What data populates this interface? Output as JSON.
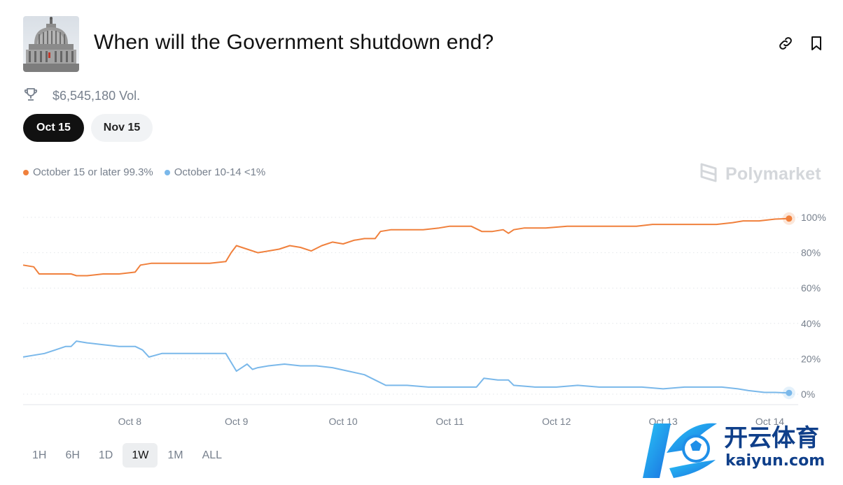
{
  "header": {
    "title": "When will the Government shutdown end?",
    "thumbnail_alt": "US Capitol building",
    "link_icon": "link-icon",
    "bookmark_icon": "bookmark-icon"
  },
  "meta": {
    "volume": "$6,545,180 Vol.",
    "volume_icon": "trophy-icon"
  },
  "date_tabs": [
    {
      "label": "Oct 15",
      "active": true
    },
    {
      "label": "Nov 15",
      "active": false
    }
  ],
  "legend": [
    {
      "label": "October 15 or later 99.3%",
      "color": "#f0803c"
    },
    {
      "label": "October 10-14 <1%",
      "color": "#7ab8ea"
    }
  ],
  "brand": "Polymarket",
  "range_buttons": [
    {
      "label": "1H",
      "active": false
    },
    {
      "label": "6H",
      "active": false
    },
    {
      "label": "1D",
      "active": false
    },
    {
      "label": "1W",
      "active": true
    },
    {
      "label": "1M",
      "active": false
    },
    {
      "label": "ALL",
      "active": false
    }
  ],
  "watermark": {
    "text_cn": "开云体育",
    "text_en": "kaiyun.com"
  },
  "chart_data": {
    "type": "line",
    "ylim": [
      0,
      100
    ],
    "yticks": [
      0,
      20,
      40,
      60,
      80,
      100
    ],
    "ytick_labels": [
      "0%",
      "20%",
      "40%",
      "60%",
      "80%",
      "100%"
    ],
    "xlim": [
      7.0,
      14.22
    ],
    "xticks": [
      8,
      9,
      10,
      11,
      12,
      13,
      14
    ],
    "xtick_labels": [
      "Oct 8",
      "Oct 9",
      "Oct 10",
      "Oct 11",
      "Oct 12",
      "Oct 13",
      "Oct 14"
    ],
    "grid": true,
    "series": [
      {
        "name": "October 15 or later",
        "color": "#f0803c",
        "points": [
          [
            7.0,
            73
          ],
          [
            7.1,
            72
          ],
          [
            7.15,
            68
          ],
          [
            7.3,
            68
          ],
          [
            7.45,
            68
          ],
          [
            7.5,
            67
          ],
          [
            7.6,
            67
          ],
          [
            7.75,
            68
          ],
          [
            7.9,
            68
          ],
          [
            8.05,
            69
          ],
          [
            8.1,
            73
          ],
          [
            8.2,
            74
          ],
          [
            8.35,
            74
          ],
          [
            8.5,
            74
          ],
          [
            8.6,
            74
          ],
          [
            8.75,
            74
          ],
          [
            8.9,
            75
          ],
          [
            8.95,
            80
          ],
          [
            9.0,
            84
          ],
          [
            9.05,
            83
          ],
          [
            9.1,
            82
          ],
          [
            9.2,
            80
          ],
          [
            9.3,
            81
          ],
          [
            9.4,
            82
          ],
          [
            9.5,
            84
          ],
          [
            9.6,
            83
          ],
          [
            9.7,
            81
          ],
          [
            9.8,
            84
          ],
          [
            9.9,
            86
          ],
          [
            10.0,
            85
          ],
          [
            10.1,
            87
          ],
          [
            10.2,
            88
          ],
          [
            10.3,
            88
          ],
          [
            10.35,
            92
          ],
          [
            10.45,
            93
          ],
          [
            10.6,
            93
          ],
          [
            10.75,
            93
          ],
          [
            10.9,
            94
          ],
          [
            11.0,
            95
          ],
          [
            11.2,
            95
          ],
          [
            11.3,
            92
          ],
          [
            11.4,
            92
          ],
          [
            11.5,
            93
          ],
          [
            11.55,
            91
          ],
          [
            11.6,
            93
          ],
          [
            11.7,
            94
          ],
          [
            11.9,
            94
          ],
          [
            12.1,
            95
          ],
          [
            12.3,
            95
          ],
          [
            12.45,
            95
          ],
          [
            12.6,
            95
          ],
          [
            12.75,
            95
          ],
          [
            12.9,
            96
          ],
          [
            13.05,
            96
          ],
          [
            13.2,
            96
          ],
          [
            13.35,
            96
          ],
          [
            13.5,
            96
          ],
          [
            13.65,
            97
          ],
          [
            13.75,
            98
          ],
          [
            13.9,
            98
          ],
          [
            14.05,
            99
          ],
          [
            14.18,
            99.3
          ]
        ]
      },
      {
        "name": "October 10-14",
        "color": "#7ab8ea",
        "points": [
          [
            7.0,
            21
          ],
          [
            7.1,
            22
          ],
          [
            7.2,
            23
          ],
          [
            7.3,
            25
          ],
          [
            7.4,
            27
          ],
          [
            7.45,
            27
          ],
          [
            7.5,
            30
          ],
          [
            7.6,
            29
          ],
          [
            7.75,
            28
          ],
          [
            7.9,
            27
          ],
          [
            8.05,
            27
          ],
          [
            8.12,
            25
          ],
          [
            8.18,
            21
          ],
          [
            8.3,
            23
          ],
          [
            8.45,
            23
          ],
          [
            8.55,
            23
          ],
          [
            8.7,
            23
          ],
          [
            8.9,
            23
          ],
          [
            8.95,
            18
          ],
          [
            9.0,
            13
          ],
          [
            9.05,
            15
          ],
          [
            9.1,
            17
          ],
          [
            9.15,
            14
          ],
          [
            9.2,
            15
          ],
          [
            9.3,
            16
          ],
          [
            9.45,
            17
          ],
          [
            9.6,
            16
          ],
          [
            9.75,
            16
          ],
          [
            9.9,
            15
          ],
          [
            10.05,
            13
          ],
          [
            10.2,
            11
          ],
          [
            10.3,
            8
          ],
          [
            10.4,
            5
          ],
          [
            10.6,
            5
          ],
          [
            10.8,
            4
          ],
          [
            11.0,
            4
          ],
          [
            11.15,
            4
          ],
          [
            11.25,
            4
          ],
          [
            11.32,
            9
          ],
          [
            11.45,
            8
          ],
          [
            11.55,
            8
          ],
          [
            11.6,
            5
          ],
          [
            11.8,
            4
          ],
          [
            12.0,
            4
          ],
          [
            12.2,
            5
          ],
          [
            12.4,
            4
          ],
          [
            12.6,
            4
          ],
          [
            12.8,
            4
          ],
          [
            13.0,
            3
          ],
          [
            13.2,
            4
          ],
          [
            13.4,
            4
          ],
          [
            13.55,
            4
          ],
          [
            13.7,
            3
          ],
          [
            13.8,
            2
          ],
          [
            13.95,
            1
          ],
          [
            14.05,
            1
          ],
          [
            14.18,
            0.7
          ]
        ]
      }
    ]
  }
}
